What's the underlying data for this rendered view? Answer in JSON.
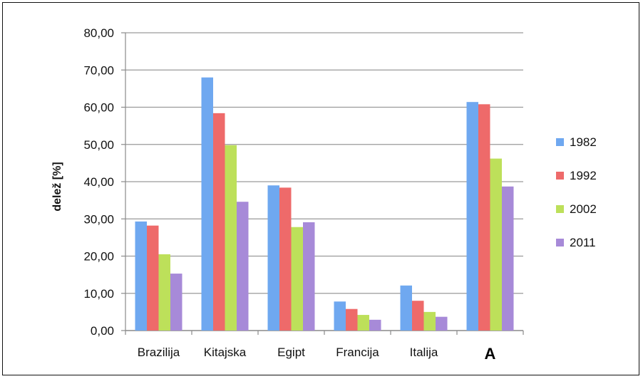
{
  "chart_data": {
    "type": "bar",
    "title": "",
    "xlabel": "",
    "ylabel": "delež [%]",
    "ylim": [
      0,
      80
    ],
    "yticks": [
      "0,00",
      "10,00",
      "20,00",
      "30,00",
      "40,00",
      "50,00",
      "60,00",
      "70,00",
      "80,00"
    ],
    "grid": true,
    "legend_position": "right",
    "categories": [
      "Brazilija",
      "Kitajska",
      "Egipt",
      "Francija",
      "Italija",
      "A"
    ],
    "series": [
      {
        "name": "1982",
        "color": "#6fa8f0",
        "values": [
          29.3,
          68.0,
          39.0,
          7.8,
          12.1,
          61.4
        ]
      },
      {
        "name": "1992",
        "color": "#ee6a6a",
        "values": [
          28.2,
          58.4,
          38.4,
          5.8,
          8.0,
          60.8
        ]
      },
      {
        "name": "2002",
        "color": "#bde05a",
        "values": [
          20.5,
          49.8,
          27.8,
          4.2,
          5.0,
          46.2
        ]
      },
      {
        "name": "2011",
        "color": "#a78ad8",
        "values": [
          15.3,
          34.6,
          29.1,
          2.9,
          3.7,
          38.7
        ]
      }
    ]
  }
}
